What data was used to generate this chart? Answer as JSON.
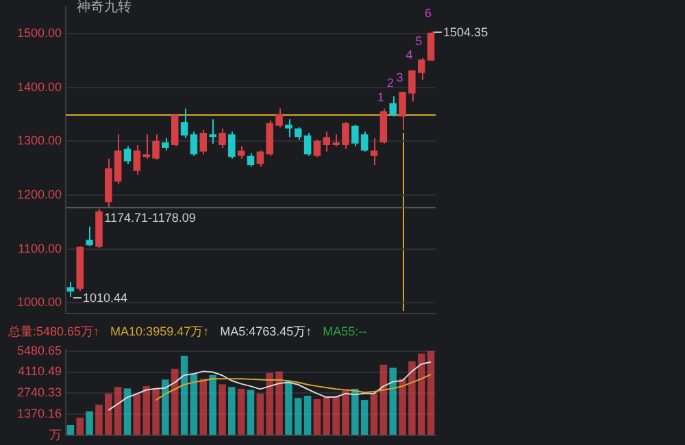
{
  "chart_data": [
    {
      "type": "candlestick",
      "subtitle": "神奇九转",
      "categories": [
        null,
        null,
        null,
        null,
        null,
        null,
        null,
        null,
        null,
        null,
        null,
        null,
        null,
        null,
        null,
        null,
        null,
        null,
        null,
        null,
        null,
        null,
        null,
        null,
        null,
        null,
        null,
        null,
        null,
        null,
        null,
        null,
        null,
        null,
        null,
        null,
        null,
        null,
        null
      ],
      "ohlc": [
        [
          1029,
          1039,
          1010.44,
          1021
        ],
        [
          1026,
          1105,
          1022,
          1104
        ],
        [
          1117,
          1142,
          1105,
          1107
        ],
        [
          1104,
          1174.71,
          1102,
          1170
        ],
        [
          1187,
          1268,
          1178.09,
          1250
        ],
        [
          1225,
          1313,
          1220,
          1283
        ],
        [
          1286,
          1291,
          1258,
          1263
        ],
        [
          1245,
          1293,
          1238,
          1283
        ],
        [
          1271,
          1313,
          1268,
          1276
        ],
        [
          1268,
          1313,
          1266,
          1301
        ],
        [
          1298,
          1306,
          1283,
          1288
        ],
        [
          1293,
          1350,
          1291,
          1349
        ],
        [
          1336,
          1361,
          1306,
          1311
        ],
        [
          1313,
          1318,
          1273,
          1276
        ],
        [
          1281,
          1321,
          1276,
          1316
        ],
        [
          1313,
          1341,
          1296,
          1308
        ],
        [
          1293,
          1324,
          1288,
          1316
        ],
        [
          1313,
          1318,
          1268,
          1271
        ],
        [
          1273,
          1291,
          1268,
          1283
        ],
        [
          1273,
          1278,
          1253,
          1256
        ],
        [
          1258,
          1283,
          1253,
          1281
        ],
        [
          1276,
          1339,
          1273,
          1334
        ],
        [
          1329,
          1361,
          1326,
          1351
        ],
        [
          1331,
          1341,
          1308,
          1324
        ],
        [
          1324,
          1326,
          1303,
          1308
        ],
        [
          1311,
          1316,
          1273,
          1276
        ],
        [
          1273,
          1303,
          1271,
          1301
        ],
        [
          1293,
          1318,
          1281,
          1308
        ],
        [
          1293,
          1313,
          1291,
          1298
        ],
        [
          1293,
          1336,
          1286,
          1334
        ],
        [
          1329,
          1331,
          1291,
          1296
        ],
        [
          1313,
          1318,
          1281,
          1283
        ],
        [
          1273,
          1306,
          1256,
          1283
        ],
        [
          1298,
          1361,
          1296,
          1356
        ],
        [
          1371,
          1384,
          1346,
          1349
        ],
        [
          1346,
          1392,
          1321,
          1392
        ],
        [
          1389,
          1432,
          1374,
          1432
        ],
        [
          1427,
          1455,
          1414,
          1452
        ],
        [
          1450,
          1504.35,
          1450,
          1502
        ]
      ],
      "colors": [
        "#1fc8c9",
        "#d64045",
        "#1fc8c9",
        "#d64045",
        "#d64045",
        "#d64045",
        "#1fc8c9",
        "#d64045",
        "#d64045",
        "#d64045",
        "#1fc8c9",
        "#d64045",
        "#1fc8c9",
        "#1fc8c9",
        "#d64045",
        "#1fc8c9",
        "#d64045",
        "#1fc8c9",
        "#d64045",
        "#1fc8c9",
        "#d64045",
        "#d64045",
        "#d64045",
        "#1fc8c9",
        "#1fc8c9",
        "#1fc8c9",
        "#d64045",
        "#d64045",
        "#d64045",
        "#d64045",
        "#1fc8c9",
        "#1fc8c9",
        "#d64045",
        "#d64045",
        "#1fc8c9",
        "#d64045",
        "#d64045",
        "#d64045",
        "#d64045"
      ],
      "ylim": [
        980,
        1550
      ],
      "yticks": [
        {
          "value": 1000,
          "label": "1000.00"
        },
        {
          "value": 1100,
          "label": "1100.00"
        },
        {
          "value": 1200,
          "label": "1200.00"
        },
        {
          "value": 1300,
          "label": "1300.00"
        },
        {
          "value": 1400,
          "label": "1400.00"
        },
        {
          "value": 1500,
          "label": "1500.00"
        }
      ],
      "tick_labels": "y",
      "grid": "y",
      "ref_lines": [
        {
          "axis": "y",
          "value": 1349,
          "color": "#d4a72c"
        },
        {
          "axis": "y",
          "value": 1177,
          "color": "#5a5c62"
        }
      ],
      "annotations": [
        "1010.44",
        "1174.71-1178.09",
        "1504.35",
        "1",
        "2",
        "3",
        "4",
        "5",
        "6"
      ]
    },
    {
      "type": "bar",
      "categories": [
        null,
        null,
        null,
        null,
        null,
        null,
        null,
        null,
        null,
        null,
        null,
        null,
        null,
        null,
        null,
        null,
        null,
        null,
        null,
        null,
        null,
        null,
        null,
        null,
        null,
        null,
        null,
        null,
        null,
        null,
        null,
        null,
        null,
        null,
        null,
        null,
        null,
        null,
        null
      ],
      "series": [
        {
          "name": "总量:5480.65万↑",
          "color": "#e0474c",
          "colors": [
            "#1fc8c9",
            "#d64045",
            "#1fc8c9",
            "#d64045",
            "#d64045",
            "#d64045",
            "#1fc8c9",
            "#d64045",
            "#d64045",
            "#d64045",
            "#1fc8c9",
            "#d64045",
            "#1fc8c9",
            "#1fc8c9",
            "#d64045",
            "#1fc8c9",
            "#d64045",
            "#1fc8c9",
            "#d64045",
            "#1fc8c9",
            "#d64045",
            "#d64045",
            "#d64045",
            "#1fc8c9",
            "#1fc8c9",
            "#1fc8c9",
            "#d64045",
            "#d64045",
            "#d64045",
            "#d64045",
            "#1fc8c9",
            "#1fc8c9",
            "#d64045",
            "#d64045",
            "#1fc8c9",
            "#d64045",
            "#d64045",
            "#d64045",
            "#d64045"
          ],
          "values": [
            670,
            1154,
            1565,
            1997,
            2718,
            3151,
            3050,
            2668,
            3195,
            3029,
            3627,
            4327,
            5170,
            3966,
            3678,
            3916,
            3317,
            3151,
            3029,
            2957,
            2718,
            4060,
            4161,
            3555,
            2430,
            2574,
            2358,
            2545,
            2545,
            2906,
            3029,
            2307,
            2718,
            4593,
            4399,
            3678,
            4810,
            5314,
            5480.65
          ]
        }
      ],
      "ylim": [
        0,
        5600
      ],
      "yticks": [
        {
          "value": 0,
          "label": "万"
        },
        1370.16,
        2740.33,
        4110.49,
        5480.65
      ],
      "tick_labels": "y",
      "grid": "y"
    },
    {
      "type": "line",
      "categories": [
        null,
        null,
        null,
        null,
        null,
        null,
        null,
        null,
        null,
        null,
        null,
        null,
        null,
        null,
        null,
        null,
        null,
        null,
        null,
        null,
        null,
        null,
        null,
        null,
        null,
        null,
        null,
        null,
        null,
        null,
        null,
        null,
        null,
        null,
        null,
        null,
        null,
        null,
        null
      ],
      "series": [
        {
          "name": "MA10:3959.47万↑",
          "color": "#d4a72c",
          "values": [
            null,
            null,
            null,
            null,
            null,
            null,
            null,
            null,
            null,
            2286,
            2700,
            3000,
            3300,
            3450,
            3555,
            3678,
            3678,
            3678,
            3678,
            3650,
            3620,
            3600,
            3600,
            3550,
            3440,
            3300,
            3195,
            3100,
            3007,
            2957,
            2900,
            2790,
            2850,
            2957,
            3050,
            3195,
            3440,
            3678,
            3959.47
          ]
        },
        {
          "name": "MA5:4763.45万↑",
          "color": "#d8d8d8",
          "values": [
            null,
            null,
            null,
            null,
            1637,
            2050,
            2473,
            2700,
            2957,
            3029,
            3079,
            3440,
            3916,
            4000,
            4161,
            4110,
            3900,
            3555,
            3350,
            3195,
            3007,
            3195,
            3380,
            3440,
            3300,
            3000,
            2718,
            2473,
            2500,
            2718,
            2650,
            2718,
            2718,
            3195,
            3483,
            3560,
            4161,
            4637,
            4763.45
          ]
        }
      ],
      "annotations": [
        "MA55:--"
      ],
      "ylim": [
        0,
        5600
      ],
      "tick_labels": false,
      "marker": "none"
    }
  ]
}
